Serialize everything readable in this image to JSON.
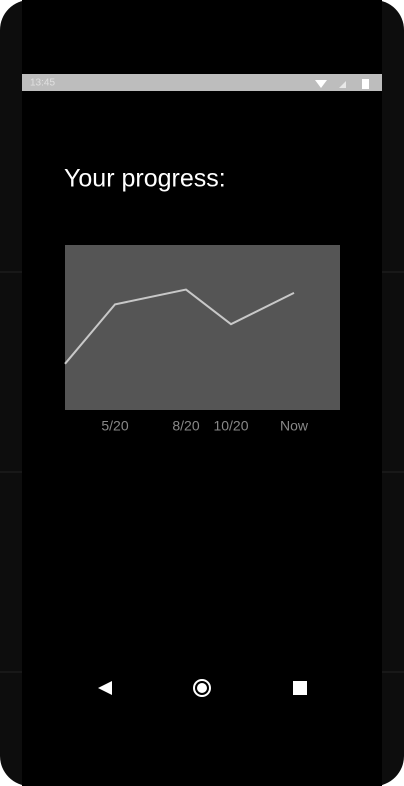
{
  "status_bar": {
    "time": "13:45"
  },
  "heading": "Your progress:",
  "chart_data": {
    "type": "line",
    "categories": [
      null,
      "5/20",
      "8/20",
      "10/20",
      "Now"
    ],
    "values": [
      28,
      64,
      73,
      52,
      71
    ],
    "color": "#c8c8c8",
    "ylim": [
      0,
      100
    ]
  }
}
